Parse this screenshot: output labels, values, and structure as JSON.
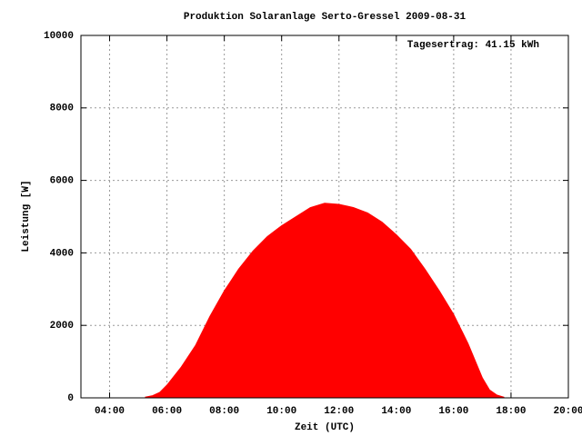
{
  "chart_data": {
    "type": "area",
    "title": "Produktion Solaranlage Serto-Gressel 2009-08-31",
    "x_label": "Zeit (UTC)",
    "y_label": "Leistung [W]",
    "annotation": "Tagesertrag: 41.15 kWh",
    "color": "#ff0000",
    "grid": true,
    "x": [
      5.25,
      5.5,
      5.75,
      6,
      6.5,
      7,
      7.5,
      8,
      8.5,
      9,
      9.5,
      10,
      10.5,
      11,
      11.5,
      12,
      12.5,
      13,
      13.5,
      14,
      14.5,
      15,
      15.5,
      16,
      16.5,
      17,
      17.25,
      17.5,
      17.75
    ],
    "values": [
      20,
      60,
      150,
      350,
      850,
      1450,
      2250,
      2950,
      3550,
      4050,
      4450,
      4750,
      5000,
      5250,
      5370,
      5340,
      5250,
      5100,
      4850,
      4500,
      4100,
      3550,
      2950,
      2300,
      1500,
      550,
      220,
      80,
      20
    ],
    "xlim": [
      3,
      20
    ],
    "xticks": [
      {
        "value": 4,
        "label": "04:00"
      },
      {
        "value": 6,
        "label": "06:00"
      },
      {
        "value": 8,
        "label": "08:00"
      },
      {
        "value": 10,
        "label": "10:00"
      },
      {
        "value": 12,
        "label": "12:00"
      },
      {
        "value": 14,
        "label": "14:00"
      },
      {
        "value": 16,
        "label": "16:00"
      },
      {
        "value": 18,
        "label": "18:00"
      },
      {
        "value": 20,
        "label": "20:00"
      }
    ],
    "ylim": [
      0,
      10000
    ],
    "yticks": [
      0,
      2000,
      4000,
      6000,
      8000,
      10000
    ]
  }
}
